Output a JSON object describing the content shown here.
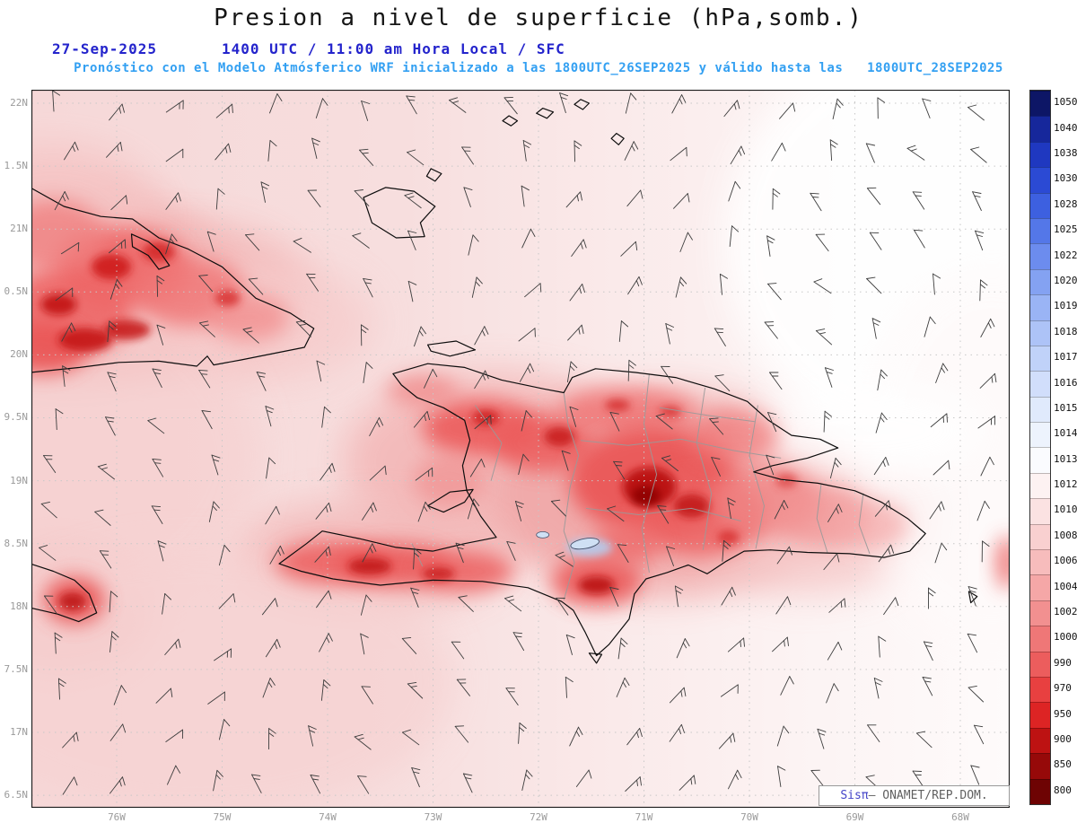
{
  "header": {
    "title": "Presion a nivel de superficie (hPa,somb.)",
    "date": "27-Sep-2025",
    "time": "1400 UTC / 11:00 am Hora Local / SFC",
    "forecast": "Pronóstico con el Modelo Atmósferico WRF inicializado a las 1800UTC_26SEP2025 y válido hasta las   1800UTC_28SEP2025"
  },
  "axes": {
    "lat_labels": [
      "22N",
      "1.5N",
      "21N",
      "0.5N",
      "20N",
      "9.5N",
      "19N",
      "8.5N",
      "18N",
      "7.5N",
      "17N",
      "6.5N"
    ],
    "lon_labels": [
      "76W",
      "75W",
      "74W",
      "73W",
      "72W",
      "71W",
      "70W",
      "69W",
      "68W"
    ]
  },
  "colorbar": {
    "unit": "hPa",
    "labels": [
      "1050",
      "1040",
      "1038",
      "1030",
      "1028",
      "1025",
      "1022",
      "1020",
      "1019",
      "1018",
      "1017",
      "1016",
      "1015",
      "1014",
      "1013",
      "1012",
      "1010",
      "1008",
      "1006",
      "1004",
      "1002",
      "1000",
      "990",
      "970",
      "950",
      "900",
      "850",
      "800"
    ],
    "colors": [
      "#0d1666",
      "#16279b",
      "#1f38c0",
      "#2b4ad4",
      "#3d60e0",
      "#5477e8",
      "#6c8cee",
      "#84a2f2",
      "#9ab4f5",
      "#adc3f7",
      "#c0d2f9",
      "#d1defb",
      "#e0eafc",
      "#edf3fd",
      "#fafbfe",
      "#fdf2f2",
      "#fbe2e2",
      "#f9d0d0",
      "#f7bcbc",
      "#f5a7a7",
      "#f29090",
      "#ef7777",
      "#ec5d5d",
      "#e84040",
      "#dd2424",
      "#bd1212",
      "#960909",
      "#6e0303"
    ]
  },
  "attribution": {
    "brand": "Sisπ",
    "text": "– ONAMET/REP.DOM."
  }
}
